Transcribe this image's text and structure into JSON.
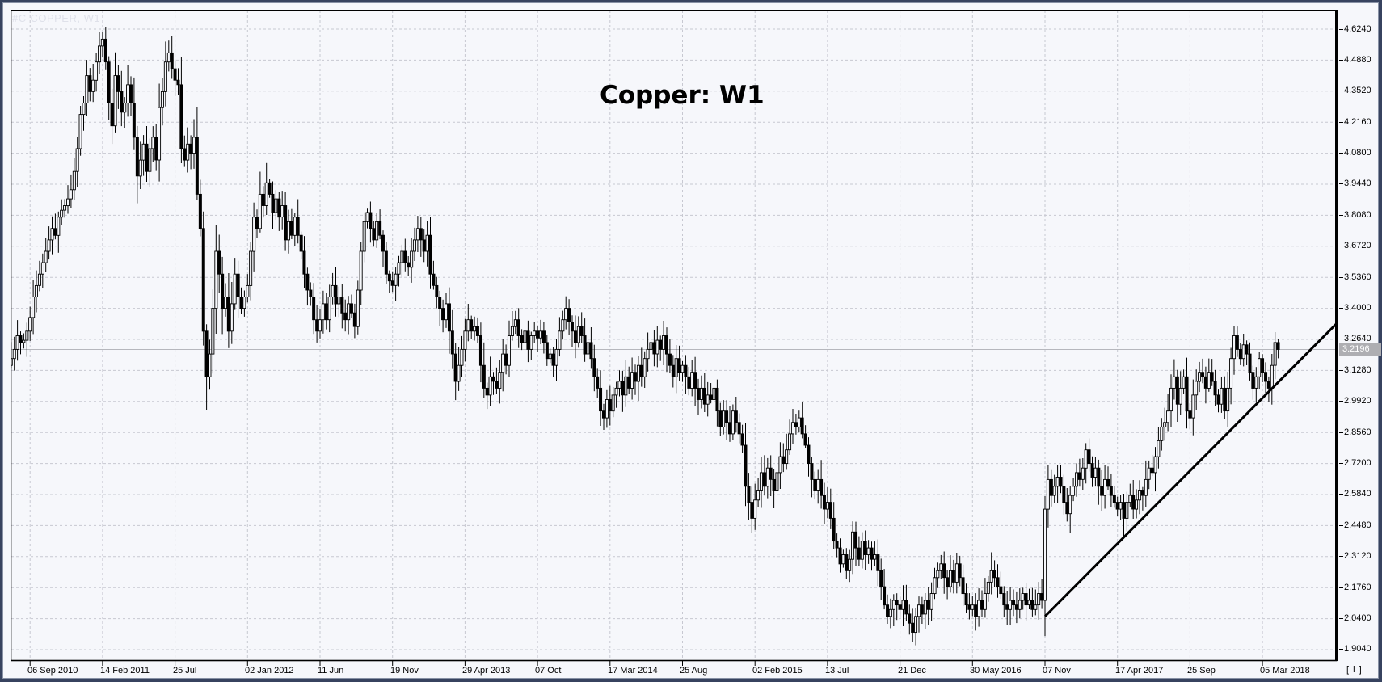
{
  "watermark": "#C-COPPER, W1",
  "title": "Copper: W1",
  "colors": {
    "background": "#f6f7fb",
    "frame": "#37435f",
    "grid": "#c7c8d1",
    "axis_border": "#000000",
    "candle": "#000000",
    "candle_up_fill": "#f6f7fb",
    "trendline": "#000000",
    "current_price_line": "#b6b7bd",
    "price_tag_bg": "#aeaeb2",
    "price_tag_text": "#ffffff",
    "watermark_color": "#dfe1ea",
    "axis_text": "#000000"
  },
  "price_axis": {
    "labels": [
      "4.6240",
      "4.4880",
      "4.3520",
      "4.2160",
      "4.0800",
      "3.9440",
      "3.8080",
      "3.6720",
      "3.5360",
      "3.4000",
      "3.2640",
      "3.1280",
      "2.9920",
      "2.8560",
      "2.7200",
      "2.5840",
      "2.4480",
      "2.3120",
      "2.1760",
      "2.0400",
      "1.9040"
    ],
    "current_price_label": "3.2196"
  },
  "time_axis": {
    "ticks": [
      {
        "label": "06 Sep 2010",
        "index": 6
      },
      {
        "label": "14 Feb 2011",
        "index": 29
      },
      {
        "label": "25 Jul",
        "index": 52
      },
      {
        "label": "02 Jan 2012",
        "index": 75
      },
      {
        "label": "11 Jun",
        "index": 98
      },
      {
        "label": "19 Nov",
        "index": 121
      },
      {
        "label": "29 Apr 2013",
        "index": 144
      },
      {
        "label": "07 Oct",
        "index": 167
      },
      {
        "label": "17 Mar 2014",
        "index": 190
      },
      {
        "label": "25 Aug",
        "index": 213
      },
      {
        "label": "02 Feb 2015",
        "index": 236
      },
      {
        "label": "13 Jul",
        "index": 259
      },
      {
        "label": "21 Dec",
        "index": 282
      },
      {
        "label": "30 May 2016",
        "index": 305
      },
      {
        "label": "07 Nov",
        "index": 328
      },
      {
        "label": "17 Apr 2017",
        "index": 351
      },
      {
        "label": "25 Sep",
        "index": 374
      },
      {
        "label": "05 Mar 2018",
        "index": 397
      }
    ],
    "scale_icon": "[ i ]"
  },
  "chart_data": {
    "type": "candlestick",
    "symbol": "#C-COPPER",
    "timeframe": "W1",
    "title": "Copper: W1",
    "first_tick_label": "06 Sep 2010",
    "last_tick_label": "05 Mar 2018",
    "bars_between_ticks": 23,
    "ylim": [
      1.904,
      4.624
    ],
    "y_tick_step": 0.136,
    "grid": "dashed",
    "bar_style": "hollow = up week, filled black = down week",
    "current_price": 3.2196,
    "trendline": {
      "from": {
        "bar_index": 328,
        "price": 2.05
      },
      "to": {
        "bar_index": 420.5,
        "price": 3.333
      }
    },
    "weekly_closes": [
      3.18,
      3.22,
      3.28,
      3.25,
      3.26,
      3.3,
      3.36,
      3.45,
      3.5,
      3.55,
      3.6,
      3.65,
      3.7,
      3.75,
      3.72,
      3.8,
      3.83,
      3.85,
      3.88,
      3.92,
      4.0,
      4.1,
      4.25,
      4.3,
      4.42,
      4.35,
      4.4,
      4.48,
      4.55,
      4.58,
      4.48,
      4.3,
      4.2,
      4.42,
      4.35,
      4.26,
      4.3,
      4.38,
      4.3,
      4.15,
      3.98,
      4.05,
      4.12,
      4.0,
      4.1,
      4.15,
      4.05,
      4.28,
      4.35,
      4.48,
      4.52,
      4.45,
      4.4,
      4.38,
      4.1,
      4.05,
      4.12,
      4.08,
      4.15,
      3.9,
      3.75,
      3.3,
      3.1,
      3.2,
      3.4,
      3.65,
      3.55,
      3.4,
      3.45,
      3.3,
      3.42,
      3.55,
      3.45,
      3.4,
      3.45,
      3.5,
      3.65,
      3.8,
      3.75,
      3.9,
      3.85,
      3.95,
      3.9,
      3.82,
      3.88,
      3.8,
      3.85,
      3.7,
      3.78,
      3.72,
      3.8,
      3.72,
      3.65,
      3.55,
      3.48,
      3.45,
      3.35,
      3.3,
      3.35,
      3.42,
      3.35,
      3.45,
      3.5,
      3.42,
      3.45,
      3.38,
      3.35,
      3.42,
      3.38,
      3.32,
      3.48,
      3.65,
      3.78,
      3.82,
      3.75,
      3.7,
      3.78,
      3.72,
      3.65,
      3.55,
      3.52,
      3.5,
      3.55,
      3.6,
      3.65,
      3.6,
      3.58,
      3.65,
      3.7,
      3.75,
      3.7,
      3.65,
      3.72,
      3.55,
      3.5,
      3.45,
      3.4,
      3.35,
      3.42,
      3.3,
      3.2,
      3.08,
      3.15,
      3.22,
      3.3,
      3.35,
      3.3,
      3.32,
      3.28,
      3.15,
      3.05,
      3.02,
      3.1,
      3.08,
      3.05,
      3.12,
      3.2,
      3.15,
      3.28,
      3.32,
      3.35,
      3.28,
      3.25,
      3.3,
      3.22,
      3.28,
      3.3,
      3.27,
      3.3,
      3.25,
      3.18,
      3.2,
      3.15,
      3.22,
      3.3,
      3.35,
      3.4,
      3.34,
      3.3,
      3.25,
      3.32,
      3.28,
      3.2,
      3.25,
      3.18,
      3.1,
      3.05,
      2.95,
      2.92,
      3.0,
      2.95,
      3.02,
      3.05,
      3.08,
      3.02,
      3.1,
      3.05,
      3.12,
      3.08,
      3.15,
      3.1,
      3.18,
      3.22,
      3.25,
      3.2,
      3.26,
      3.22,
      3.28,
      3.2,
      3.15,
      3.1,
      3.18,
      3.12,
      3.15,
      3.1,
      3.05,
      3.12,
      3.05,
      3.0,
      3.05,
      2.98,
      3.02,
      3.0,
      3.05,
      2.95,
      2.88,
      2.95,
      2.9,
      2.85,
      2.95,
      2.9,
      2.85,
      2.8,
      2.62,
      2.55,
      2.48,
      2.56,
      2.6,
      2.68,
      2.62,
      2.7,
      2.65,
      2.6,
      2.68,
      2.75,
      2.72,
      2.78,
      2.85,
      2.9,
      2.88,
      2.92,
      2.85,
      2.8,
      2.72,
      2.65,
      2.6,
      2.65,
      2.58,
      2.52,
      2.55,
      2.48,
      2.38,
      2.35,
      2.28,
      2.32,
      2.25,
      2.3,
      2.42,
      2.35,
      2.3,
      2.38,
      2.32,
      2.35,
      2.3,
      2.32,
      2.25,
      2.18,
      2.1,
      2.05,
      2.08,
      2.12,
      2.1,
      2.08,
      2.12,
      2.06,
      2.02,
      1.98,
      2.05,
      2.1,
      2.06,
      2.12,
      2.08,
      2.15,
      2.22,
      2.25,
      2.28,
      2.22,
      2.18,
      2.25,
      2.2,
      2.28,
      2.22,
      2.15,
      2.1,
      2.08,
      2.1,
      2.05,
      2.12,
      2.08,
      2.15,
      2.2,
      2.25,
      2.22,
      2.18,
      2.15,
      2.1,
      2.08,
      2.12,
      2.1,
      2.08,
      2.12,
      2.15,
      2.1,
      2.12,
      2.08,
      2.1,
      2.15,
      2.12,
      2.52,
      2.65,
      2.58,
      2.62,
      2.66,
      2.62,
      2.55,
      2.5,
      2.58,
      2.62,
      2.68,
      2.65,
      2.7,
      2.78,
      2.72,
      2.66,
      2.7,
      2.62,
      2.58,
      2.65,
      2.62,
      2.58,
      2.55,
      2.52,
      2.55,
      2.48,
      2.55,
      2.58,
      2.52,
      2.56,
      2.6,
      2.58,
      2.65,
      2.7,
      2.68,
      2.75,
      2.82,
      2.88,
      2.9,
      2.95,
      3.05,
      3.1,
      2.98,
      3.05,
      3.1,
      2.95,
      2.92,
      3.02,
      3.08,
      3.12,
      3.1,
      3.05,
      3.12,
      3.08,
      3.02,
      2.98,
      3.05,
      2.95,
      3.05,
      3.18,
      3.28,
      3.22,
      3.18,
      3.24,
      3.2,
      3.12,
      3.05,
      3.1,
      3.18,
      3.12,
      3.08,
      3.05,
      3.15,
      3.25,
      3.2196
    ]
  }
}
